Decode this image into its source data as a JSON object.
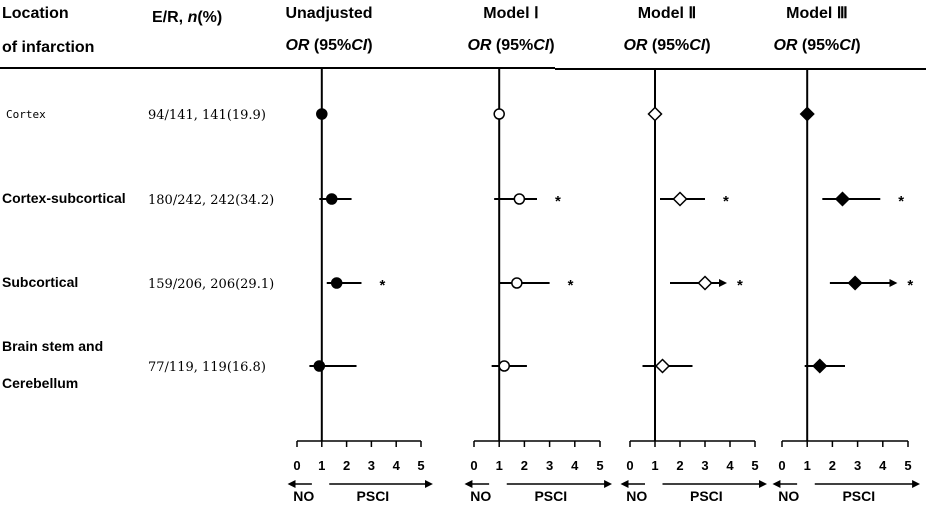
{
  "header": {
    "col1_line1": "Location",
    "col1_line2": "of infarction",
    "col2_label": "E/R, ",
    "col2_italic": "n",
    "col2_suffix": "(%)"
  },
  "or_label": {
    "italic_or": "OR",
    "mid": " (95%",
    "italic_ci": "CI",
    "end": ")"
  },
  "rows": [
    {
      "label_lines": [
        "Cortex"
      ],
      "er": "94/141, 141(19.9)",
      "style": "plain"
    },
    {
      "label_lines": [
        "Cortex-subcortical"
      ],
      "er": "180/242, 242(34.2)",
      "style": "bold"
    },
    {
      "label_lines": [
        "Subcortical"
      ],
      "er": "159/206, 206(29.1)",
      "style": "bold"
    },
    {
      "label_lines": [
        "Brain stem and",
        "Cerebellum"
      ],
      "er": "77/119, 119(16.8)",
      "style": "bold"
    }
  ],
  "footer": {
    "left": "NO",
    "right": "PSCI"
  },
  "colors": {
    "ink": "#000000",
    "background": "#ffffff"
  },
  "chart_data": {
    "type": "forest",
    "xlim": [
      0,
      5
    ],
    "ticks": [
      "0",
      "1",
      "2",
      "3",
      "4",
      "5"
    ],
    "reference_line": 1,
    "panels": [
      {
        "name": "Unadjusted",
        "marker": "filled-circle",
        "points": [
          {
            "or": 1.0,
            "lo": 1.0,
            "hi": 1.0,
            "sig": false
          },
          {
            "or": 1.4,
            "lo": 0.9,
            "hi": 2.2,
            "sig": false
          },
          {
            "or": 1.6,
            "lo": 1.2,
            "hi": 2.6,
            "sig": true,
            "arrow": false
          },
          {
            "or": 0.9,
            "lo": 0.5,
            "hi": 2.4,
            "sig": false
          }
        ]
      },
      {
        "name": "Model Ⅰ",
        "marker": "open-circle",
        "points": [
          {
            "or": 1.0,
            "lo": 1.0,
            "hi": 1.0,
            "sig": false
          },
          {
            "or": 1.8,
            "lo": 0.8,
            "hi": 2.5,
            "sig": true,
            "arrow": false
          },
          {
            "or": 1.7,
            "lo": 1.0,
            "hi": 3.0,
            "sig": true,
            "arrow": false
          },
          {
            "or": 1.2,
            "lo": 0.7,
            "hi": 2.1,
            "sig": false
          }
        ]
      },
      {
        "name": "Model Ⅱ",
        "marker": "open-diamond",
        "points": [
          {
            "or": 1.0,
            "lo": 1.0,
            "hi": 1.0,
            "sig": false
          },
          {
            "or": 2.0,
            "lo": 1.2,
            "hi": 3.0,
            "sig": true,
            "arrow": false
          },
          {
            "or": 3.0,
            "lo": 1.6,
            "hi": 3.8,
            "sig": true,
            "arrow": true
          },
          {
            "or": 1.3,
            "lo": 0.5,
            "hi": 2.5,
            "sig": false
          }
        ]
      },
      {
        "name": "Model Ⅲ",
        "marker": "filled-diamond",
        "points": [
          {
            "or": 1.0,
            "lo": 1.0,
            "hi": 1.0,
            "sig": false
          },
          {
            "or": 2.4,
            "lo": 1.6,
            "hi": 3.9,
            "sig": true,
            "arrow": false
          },
          {
            "or": 2.9,
            "lo": 1.9,
            "hi": 4.5,
            "sig": true,
            "arrow": true
          },
          {
            "or": 1.5,
            "lo": 0.9,
            "hi": 2.5,
            "sig": false
          }
        ]
      }
    ]
  }
}
